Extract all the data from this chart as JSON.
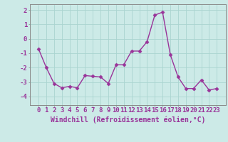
{
  "x": [
    0,
    1,
    2,
    3,
    4,
    5,
    6,
    7,
    8,
    9,
    10,
    11,
    12,
    13,
    14,
    15,
    16,
    17,
    18,
    19,
    20,
    21,
    22,
    23
  ],
  "y": [
    -0.7,
    -2.0,
    -3.1,
    -3.4,
    -3.3,
    -3.4,
    -2.55,
    -2.6,
    -2.65,
    -3.1,
    -1.8,
    -1.8,
    -0.85,
    -0.85,
    -0.2,
    1.65,
    1.85,
    -1.1,
    -2.65,
    -3.45,
    -3.45,
    -2.85,
    -3.55,
    -3.45
  ],
  "line_color": "#993399",
  "marker": "D",
  "markersize": 2.5,
  "linewidth": 1.0,
  "bg_color": "#cceae7",
  "grid_color": "#aad4d0",
  "xlabel": "Windchill (Refroidissement éolien,°C)",
  "xlabel_color": "#993399",
  "xlabel_fontsize": 7,
  "tick_color": "#993399",
  "tick_fontsize": 6.5,
  "ylim": [
    -4.6,
    2.4
  ],
  "yticks": [
    -4,
    -3,
    -2,
    -1,
    0,
    1,
    2
  ],
  "xticks": [
    0,
    1,
    2,
    3,
    4,
    5,
    6,
    7,
    8,
    9,
    10,
    11,
    12,
    13,
    14,
    15,
    16,
    17,
    18,
    19,
    20,
    21,
    22,
    23
  ],
  "spine_color": "#888888"
}
